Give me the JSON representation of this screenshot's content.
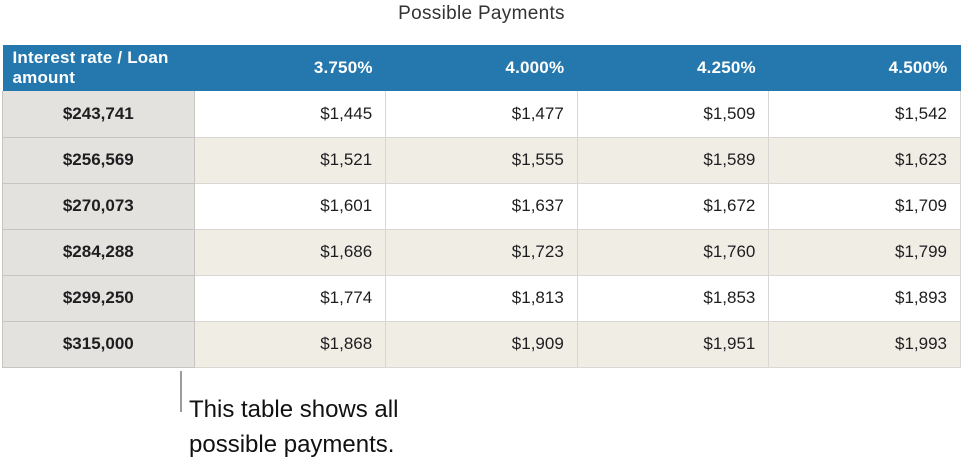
{
  "title": "Possible Payments",
  "callout": {
    "text": "This table shows all possible payments."
  },
  "colors": {
    "header_blue": "#2478ad",
    "header_text": "#ffffff",
    "row_header_gray": "#e4e2de",
    "zebra_cream": "#f0ede5",
    "zebra_white": "#ffffff",
    "border_dark": "#c7c5c1",
    "border_light": "#d9d7d3",
    "callout_line_gray": "#9b9b9b",
    "body_text": "#1e1e20"
  },
  "chart_data": {
    "type": "table",
    "title": "Possible Payments",
    "columns": [
      "Interest rate / Loan amount",
      "3.750%",
      "4.000%",
      "4.250%",
      "4.500%"
    ],
    "rows": [
      {
        "loan_amount": "$243,741",
        "payments": [
          "$1,445",
          "$1,477",
          "$1,509",
          "$1,542"
        ]
      },
      {
        "loan_amount": "$256,569",
        "payments": [
          "$1,521",
          "$1,555",
          "$1,589",
          "$1,623"
        ]
      },
      {
        "loan_amount": "$270,073",
        "payments": [
          "$1,601",
          "$1,637",
          "$1,672",
          "$1,709"
        ]
      },
      {
        "loan_amount": "$284,288",
        "payments": [
          "$1,686",
          "$1,723",
          "$1,760",
          "$1,799"
        ]
      },
      {
        "loan_amount": "$299,250",
        "payments": [
          "$1,774",
          "$1,813",
          "$1,853",
          "$1,893"
        ]
      },
      {
        "loan_amount": "$315,000",
        "payments": [
          "$1,868",
          "$1,909",
          "$1,951",
          "$1,993"
        ]
      }
    ]
  }
}
